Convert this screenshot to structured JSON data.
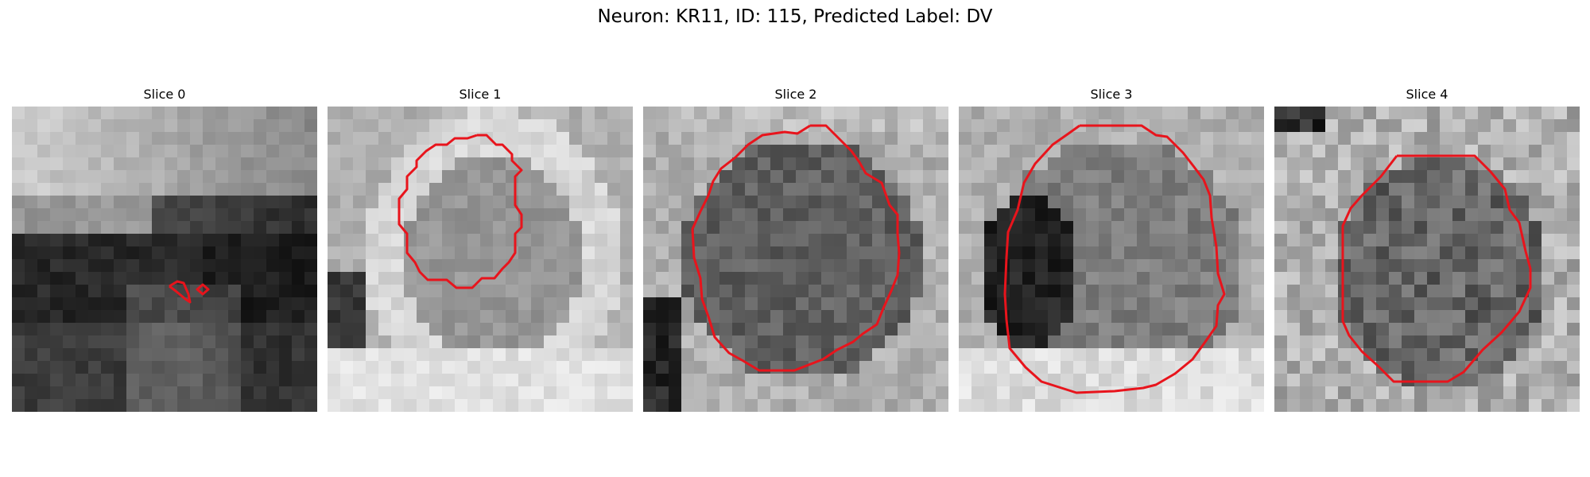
{
  "figure": {
    "title": "Neuron: KR11, ID: 115, Predicted Label: DV"
  },
  "panels": [
    {
      "title": "Slice 0",
      "scene": "dark-lower-band",
      "outline_color": "#e8141c"
    },
    {
      "title": "Slice 1",
      "scene": "bright-ring",
      "outline_color": "#e8141c"
    },
    {
      "title": "Slice 2",
      "scene": "gray-soma",
      "outline_color": "#e8141c"
    },
    {
      "title": "Slice 3",
      "scene": "dark-left-soma",
      "outline_color": "#e8141c"
    },
    {
      "title": "Slice 4",
      "scene": "noisy-soma",
      "outline_color": "#e8141c"
    }
  ]
}
